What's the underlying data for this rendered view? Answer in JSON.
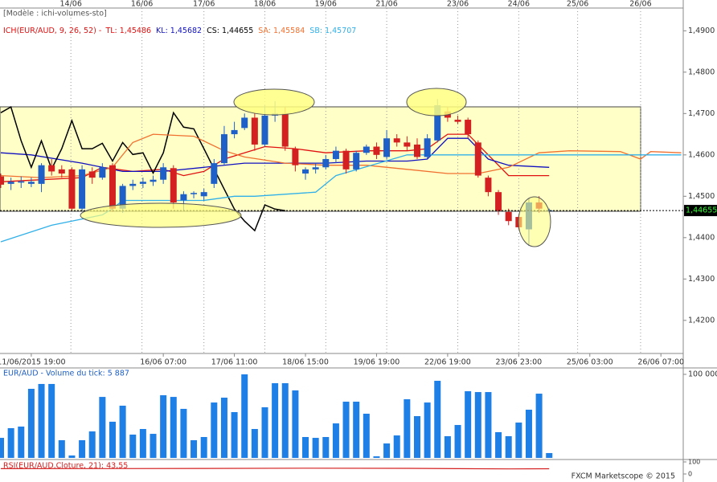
{
  "chart_data": [
    {
      "type": "candlestick",
      "model": "[Modèle : ichi-volumes-sto]",
      "indicator": "ICH(EUR/AUD, 9, 26, 52) -",
      "up_color": "#1e5fc8",
      "down_color": "#d42020",
      "x": [
        0,
        1,
        2,
        3,
        4,
        5,
        6,
        7,
        8,
        9,
        10,
        11,
        12,
        13,
        14,
        15,
        16,
        17,
        18,
        19,
        20,
        21,
        22,
        23,
        24,
        25,
        26,
        27,
        28,
        29,
        30,
        31,
        32,
        33,
        34,
        35,
        36,
        37,
        38,
        39,
        40,
        41,
        42,
        43,
        44,
        45,
        46,
        47,
        48,
        49,
        50,
        51,
        52,
        53,
        54
      ],
      "open": [
        1.4548,
        1.453,
        1.4533,
        1.453,
        1.453,
        1.4575,
        1.4565,
        1.4565,
        1.447,
        1.456,
        1.4545,
        1.4575,
        1.447,
        1.4525,
        1.453,
        1.4535,
        1.454,
        1.4568,
        1.449,
        1.4505,
        1.45,
        1.453,
        1.458,
        1.465,
        1.4665,
        1.469,
        1.4625,
        1.4695,
        1.47,
        1.4615,
        1.4555,
        1.4565,
        1.457,
        1.459,
        1.461,
        1.4565,
        1.4605,
        1.462,
        1.4595,
        1.464,
        1.463,
        1.4625,
        1.4595,
        1.4635,
        1.4705,
        1.4685,
        1.4685,
        1.463,
        1.4545,
        1.451,
        1.4462,
        1.445,
        1.442,
        1.4485,
        1.4465
      ],
      "high": [
        1.4555,
        1.4545,
        1.4548,
        1.4545,
        1.458,
        1.459,
        1.4575,
        1.457,
        1.4575,
        1.457,
        1.458,
        1.458,
        1.453,
        1.454,
        1.4545,
        1.455,
        1.458,
        1.4575,
        1.4512,
        1.4512,
        1.4518,
        1.459,
        1.467,
        1.468,
        1.47,
        1.47,
        1.472,
        1.473,
        1.4715,
        1.462,
        1.457,
        1.458,
        1.46,
        1.462,
        1.4615,
        1.461,
        1.4625,
        1.463,
        1.466,
        1.465,
        1.4645,
        1.464,
        1.465,
        1.4735,
        1.4715,
        1.4695,
        1.469,
        1.4635,
        1.455,
        1.4515,
        1.447,
        1.4455,
        1.4495,
        1.45,
        1.447
      ],
      "low": [
        1.452,
        1.4515,
        1.452,
        1.4522,
        1.451,
        1.455,
        1.4545,
        1.4465,
        1.4465,
        1.453,
        1.454,
        1.4462,
        1.446,
        1.4515,
        1.452,
        1.4525,
        1.453,
        1.447,
        1.4465,
        1.4495,
        1.449,
        1.452,
        1.4575,
        1.464,
        1.466,
        1.461,
        1.462,
        1.468,
        1.461,
        1.456,
        1.454,
        1.4555,
        1.4565,
        1.458,
        1.4555,
        1.456,
        1.46,
        1.459,
        1.459,
        1.462,
        1.461,
        1.459,
        1.459,
        1.463,
        1.468,
        1.4675,
        1.464,
        1.4545,
        1.45,
        1.4455,
        1.443,
        1.442,
        1.438,
        1.446,
        1.446
      ],
      "close": [
        1.4528,
        1.4535,
        1.4536,
        1.4535,
        1.4575,
        1.456,
        1.4555,
        1.447,
        1.4565,
        1.4545,
        1.457,
        1.447,
        1.4525,
        1.453,
        1.4535,
        1.454,
        1.457,
        1.4485,
        1.4505,
        1.4508,
        1.451,
        1.458,
        1.465,
        1.466,
        1.469,
        1.4625,
        1.4695,
        1.47,
        1.462,
        1.4575,
        1.4565,
        1.457,
        1.459,
        1.461,
        1.4565,
        1.4605,
        1.462,
        1.46,
        1.464,
        1.463,
        1.462,
        1.4595,
        1.464,
        1.472,
        1.469,
        1.468,
        1.465,
        1.455,
        1.451,
        1.4465,
        1.444,
        1.4425,
        1.4485,
        1.447,
        1.4466
      ],
      "lines": [
        {
          "name": "TL: 1,45486",
          "color": "#e01010",
          "x": [
            0,
            4,
            8,
            10,
            13,
            16,
            18,
            20,
            22,
            24,
            26,
            29,
            32,
            36,
            40,
            42,
            44,
            46,
            48,
            50,
            54
          ],
          "values": [
            1.4535,
            1.454,
            1.4545,
            1.457,
            1.456,
            1.4565,
            1.455,
            1.456,
            1.459,
            1.4605,
            1.462,
            1.4615,
            1.4605,
            1.461,
            1.461,
            1.4615,
            1.465,
            1.465,
            1.46,
            1.455,
            1.455
          ]
        },
        {
          "name": "KL: 1,45682",
          "color": "#1010c0",
          "x": [
            0,
            3,
            8,
            12,
            16,
            20,
            24,
            28,
            32,
            36,
            40,
            42,
            44,
            46,
            48,
            50,
            54
          ],
          "values": [
            1.4605,
            1.46,
            1.458,
            1.456,
            1.456,
            1.457,
            1.458,
            1.458,
            1.458,
            1.4585,
            1.4585,
            1.459,
            1.464,
            1.464,
            1.459,
            1.4575,
            1.457
          ]
        },
        {
          "name": "CS: 1,44655",
          "color": "#000000",
          "x": [
            0,
            1,
            2,
            3,
            4,
            5,
            6,
            7,
            8,
            9,
            10,
            11,
            12,
            13,
            14,
            15,
            16,
            17,
            18,
            19,
            20,
            21,
            22,
            23,
            24,
            25,
            26,
            27,
            28
          ],
          "values": [
            1.4702,
            1.4716,
            1.4634,
            1.457,
            1.4634,
            1.4566,
            1.4615,
            1.4683,
            1.4615,
            1.4615,
            1.4628,
            1.4585,
            1.463,
            1.4601,
            1.4605,
            1.4556,
            1.4605,
            1.4702,
            1.4667,
            1.4663,
            1.4615,
            1.4566,
            1.4517,
            1.4469,
            1.444,
            1.4417,
            1.4479,
            1.4469,
            1.4465
          ]
        },
        {
          "name": "SA: 1,45584",
          "color": "#f07030",
          "x": [
            0,
            4,
            8,
            11,
            13,
            15,
            19,
            22,
            24,
            28,
            32,
            36,
            40,
            44,
            47,
            50,
            53,
            56,
            61,
            63,
            64,
            67
          ],
          "values": [
            1.455,
            1.4545,
            1.455,
            1.457,
            1.463,
            1.465,
            1.4645,
            1.461,
            1.4595,
            1.458,
            1.4575,
            1.4575,
            1.4565,
            1.4555,
            1.4555,
            1.457,
            1.4605,
            1.461,
            1.4608,
            1.459,
            1.4608,
            1.4605
          ]
        },
        {
          "name": "SB: 1,45707",
          "color": "#30b0e8",
          "x": [
            0,
            5,
            10,
            11,
            12,
            20,
            23,
            25,
            31,
            33,
            40,
            67
          ],
          "values": [
            1.439,
            1.443,
            1.4455,
            1.447,
            1.449,
            1.449,
            1.45,
            1.45,
            1.451,
            1.455,
            1.46,
            1.46
          ]
        }
      ],
      "last": {
        "value": 1.44655,
        "label": "1,44655"
      },
      "xlim": [
        -0.08,
        67.2
      ],
      "ylim": [
        1.412,
        1.4955
      ],
      "yticks": [
        {
          "value": 1.49,
          "label": "1,4900"
        },
        {
          "value": 1.48,
          "label": "1,4800"
        },
        {
          "value": 1.47,
          "label": "1,4700"
        },
        {
          "value": 1.46,
          "label": "1,4600"
        },
        {
          "value": 1.45,
          "label": "1,4500"
        },
        {
          "value": 1.44,
          "label": "1,4400"
        },
        {
          "value": 1.43,
          "label": "1,4300"
        },
        {
          "value": 1.42,
          "label": "1,4200"
        }
      ],
      "top_ticks": [
        {
          "value": 6.9,
          "label": "14/06"
        },
        {
          "value": 13.9,
          "label": "16/06"
        },
        {
          "value": 20,
          "label": "17/06"
        },
        {
          "value": 26,
          "label": "18/06"
        },
        {
          "value": 32,
          "label": "19/06"
        },
        {
          "value": 38,
          "label": "21/06"
        },
        {
          "value": 45,
          "label": "23/06"
        },
        {
          "value": 51,
          "label": "24/06"
        },
        {
          "value": 56.8,
          "label": "25/06"
        },
        {
          "value": 63,
          "label": "26/06"
        }
      ],
      "xticks": [
        {
          "value": 3,
          "label": "11/06/2015 19:00"
        },
        {
          "value": 16,
          "label": "16/06 07:00"
        },
        {
          "value": 23,
          "label": "17/06 11:00"
        },
        {
          "value": 30,
          "label": "18/06 15:00"
        },
        {
          "value": 37,
          "label": "19/06 19:00"
        },
        {
          "value": 44,
          "label": "22/06 19:00"
        },
        {
          "value": 51,
          "label": "23/06 23:00"
        },
        {
          "value": 58,
          "label": "25/06 03:00"
        },
        {
          "value": 65,
          "label": "26/06 07:00"
        }
      ]
    },
    {
      "type": "bar",
      "title": "EUR/AUD - Volume du tick: 5 887",
      "color": "#1e7fe6",
      "x": [
        0,
        1,
        2,
        3,
        4,
        5,
        6,
        7,
        8,
        9,
        10,
        11,
        12,
        13,
        14,
        15,
        16,
        17,
        18,
        19,
        20,
        21,
        22,
        23,
        24,
        25,
        26,
        27,
        28,
        29,
        30,
        31,
        32,
        33,
        34,
        35,
        36,
        37,
        38,
        39,
        40,
        41,
        42,
        43,
        44,
        45,
        46,
        47,
        48,
        49,
        50,
        51,
        52,
        53,
        54
      ],
      "values": [
        24000,
        35600,
        37500,
        82700,
        88500,
        88500,
        21200,
        2900,
        21200,
        31700,
        73000,
        43300,
        62500,
        27900,
        34600,
        28800,
        75000,
        73000,
        58700,
        21200,
        25000,
        66300,
        72100,
        54800,
        100000,
        34600,
        60600,
        89400,
        89400,
        80800,
        25000,
        24000,
        25000,
        41300,
        67300,
        67300,
        52900,
        1900,
        17300,
        26900,
        70200,
        50000,
        66300,
        92300,
        26000,
        39400,
        79800,
        78800,
        78800,
        30800,
        26000,
        42300,
        57700,
        76900,
        5800
      ],
      "ylim": [
        0,
        100000
      ],
      "yticks": [
        {
          "value": 100000,
          "label": "100 000"
        }
      ]
    },
    {
      "type": "line",
      "title": "RSI(EUR/AUD.Cloture, 21): 43,55",
      "color": "#d42020",
      "x": [
        0,
        10,
        20,
        30,
        40,
        45,
        50,
        54
      ],
      "values": [
        44,
        45,
        46,
        48,
        47,
        44,
        42,
        43.55
      ],
      "ylim": [
        0,
        100
      ],
      "yticks": [
        100,
        0
      ]
    },
    {
      "type": "text",
      "footer": "FXCM Marketscope © 2015"
    }
  ]
}
